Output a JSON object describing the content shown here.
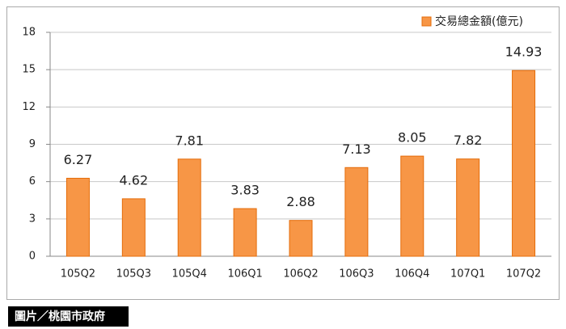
{
  "chart_data": {
    "type": "bar",
    "categories": [
      "105Q2",
      "105Q3",
      "105Q4",
      "106Q1",
      "106Q2",
      "106Q3",
      "106Q4",
      "107Q1",
      "107Q2"
    ],
    "series": [
      {
        "name": "交易總金額(億元)",
        "color": "#f79646",
        "values": [
          6.27,
          4.62,
          7.81,
          3.83,
          2.88,
          7.13,
          8.05,
          7.82,
          14.93
        ]
      }
    ],
    "ylim": [
      0,
      18
    ],
    "yticks": [
      0,
      3,
      6,
      9,
      12,
      15,
      18
    ],
    "grid": true,
    "legend": "top-right",
    "data_labels": true
  },
  "caption": "圖片／桃園市政府"
}
